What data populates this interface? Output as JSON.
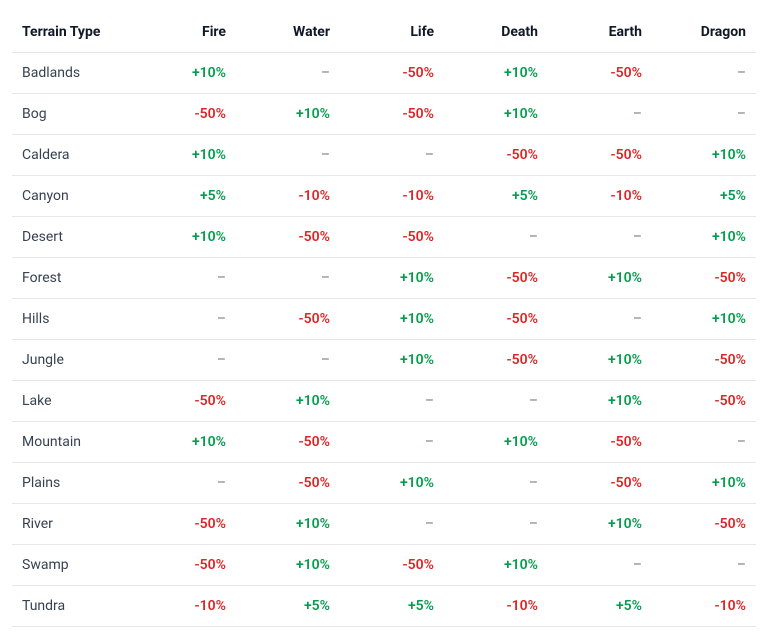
{
  "table": {
    "type": "table",
    "columns": [
      "Terrain Type",
      "Fire",
      "Water",
      "Life",
      "Death",
      "Earth",
      "Dragon"
    ],
    "colors": {
      "positive": "#059c4d",
      "negative": "#dc2626",
      "neutral": "#6b7280",
      "border": "#e5e7eb",
      "header_text": "#111827",
      "row_label_text": "#374151",
      "background": "#ffffff"
    },
    "rows": [
      {
        "terrain": "Badlands",
        "cells": [
          "+10%",
          "–",
          "-50%",
          "+10%",
          "-50%",
          "–"
        ]
      },
      {
        "terrain": "Bog",
        "cells": [
          "-50%",
          "+10%",
          "-50%",
          "+10%",
          "–",
          "–"
        ]
      },
      {
        "terrain": "Caldera",
        "cells": [
          "+10%",
          "–",
          "–",
          "-50%",
          "-50%",
          "+10%"
        ]
      },
      {
        "terrain": "Canyon",
        "cells": [
          "+5%",
          "-10%",
          "-10%",
          "+5%",
          "-10%",
          "+5%"
        ]
      },
      {
        "terrain": "Desert",
        "cells": [
          "+10%",
          "-50%",
          "-50%",
          "–",
          "–",
          "+10%"
        ]
      },
      {
        "terrain": "Forest",
        "cells": [
          "–",
          "–",
          "+10%",
          "-50%",
          "+10%",
          "-50%"
        ]
      },
      {
        "terrain": "Hills",
        "cells": [
          "–",
          "-50%",
          "+10%",
          "-50%",
          "–",
          "+10%"
        ]
      },
      {
        "terrain": "Jungle",
        "cells": [
          "–",
          "–",
          "+10%",
          "-50%",
          "+10%",
          "-50%"
        ]
      },
      {
        "terrain": "Lake",
        "cells": [
          "-50%",
          "+10%",
          "–",
          "–",
          "+10%",
          "-50%"
        ]
      },
      {
        "terrain": "Mountain",
        "cells": [
          "+10%",
          "-50%",
          "–",
          "+10%",
          "-50%",
          "–"
        ]
      },
      {
        "terrain": "Plains",
        "cells": [
          "–",
          "-50%",
          "+10%",
          "–",
          "-50%",
          "+10%"
        ]
      },
      {
        "terrain": "River",
        "cells": [
          "-50%",
          "+10%",
          "–",
          "–",
          "+10%",
          "-50%"
        ]
      },
      {
        "terrain": "Swamp",
        "cells": [
          "-50%",
          "+10%",
          "-50%",
          "+10%",
          "–",
          "–"
        ]
      },
      {
        "terrain": "Tundra",
        "cells": [
          "-10%",
          "+5%",
          "+5%",
          "-10%",
          "+5%",
          "-10%"
        ]
      }
    ]
  }
}
